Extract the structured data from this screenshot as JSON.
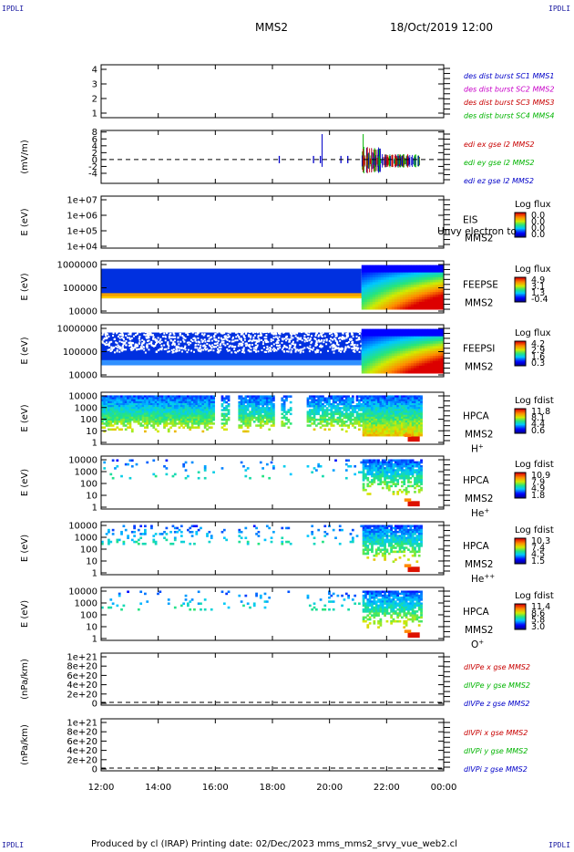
{
  "header": {
    "spacecraft": "MMS2",
    "date_time": "18/Oct/2019 12:00"
  },
  "corner_label": "IPDLI",
  "footer": "Produced by cl (IRAP)   Printing date: 02/Dec/2023   mms_mms2_srvy_vue_web2.cl",
  "x_axis": {
    "range": [
      "12:00",
      "00:00"
    ],
    "ticks": [
      "12:00",
      "14:00",
      "16:00",
      "18:00",
      "20:00",
      "22:00",
      "00:00"
    ]
  },
  "chart_data": [
    {
      "type": "line",
      "title": "",
      "ylabel": "",
      "yticks": [
        "1",
        "2",
        "3",
        "4"
      ],
      "legend": [
        {
          "text": "des dist burst SC1 MMS1",
          "color": "#0000c8"
        },
        {
          "text": "des dist burst SC2 MMS2",
          "color": "#c800c8"
        },
        {
          "text": "des dist burst SC3 MMS3",
          "color": "#c80000"
        },
        {
          "text": "des dist burst SC4 MMS4",
          "color": "#00b400"
        }
      ],
      "series": []
    },
    {
      "type": "line",
      "ylabel": "(mV/m)",
      "yticks": [
        "-4",
        "-2",
        "0",
        "2",
        "4",
        "6",
        "8"
      ],
      "ylim": [
        -5,
        9
      ],
      "zero_line": true,
      "legend": [
        {
          "text": "edi ex gse l2 MMS2",
          "color": "#c80000"
        },
        {
          "text": "edi ey gse l2 MMS2",
          "color": "#00b400"
        },
        {
          "text": "edi ez gse l2 MMS2",
          "color": "#0000c8"
        }
      ]
    },
    {
      "type": "heatmap",
      "ylabel": "E (eV)",
      "yticks": [
        "1e+04",
        "1e+05",
        "1e+06",
        "1e+07"
      ],
      "side_labels": [
        "EIS",
        "MMS2"
      ],
      "overlay_text": "Unvy electron to",
      "colorbar": {
        "title": "Log flux",
        "ticks": [
          "0.0",
          "0.0",
          "0.0",
          "0.0"
        ]
      }
    },
    {
      "type": "heatmap",
      "ylabel": "E (eV)",
      "yticks": [
        "10000",
        "100000",
        "1000000"
      ],
      "side_labels": [
        "FEEPSE",
        "MMS2"
      ],
      "colorbar": {
        "title": "Log flux",
        "ticks": [
          "4.9",
          "3.1",
          "1.3",
          "-0.4"
        ]
      }
    },
    {
      "type": "heatmap",
      "ylabel": "E (eV)",
      "yticks": [
        "10000",
        "100000",
        "1000000"
      ],
      "side_labels": [
        "FEEPSI",
        "MMS2"
      ],
      "colorbar": {
        "title": "Log flux",
        "ticks": [
          "4.2",
          "2.9",
          "1.6",
          "0.3"
        ]
      }
    },
    {
      "type": "heatmap",
      "ylabel": "E (eV)",
      "yticks": [
        "1",
        "10",
        "100",
        "1000",
        "10000"
      ],
      "side_labels": [
        "HPCA",
        "MMS2"
      ],
      "species": "H",
      "charge": "+",
      "colorbar": {
        "title": "Log fdist",
        "ticks": [
          "11.8",
          "8.1",
          "4.4",
          "0.6"
        ]
      }
    },
    {
      "type": "heatmap",
      "ylabel": "E (eV)",
      "yticks": [
        "1",
        "10",
        "100",
        "1000",
        "10000"
      ],
      "side_labels": [
        "HPCA",
        "MMS2"
      ],
      "species": "He",
      "charge": "+",
      "colorbar": {
        "title": "Log fdist",
        "ticks": [
          "10.9",
          "7.9",
          "4.9",
          "1.8"
        ]
      }
    },
    {
      "type": "heatmap",
      "ylabel": "E (eV)",
      "yticks": [
        "1",
        "10",
        "100",
        "1000",
        "10000"
      ],
      "side_labels": [
        "HPCA",
        "MMS2"
      ],
      "species": "He",
      "charge": "++",
      "colorbar": {
        "title": "Log fdist",
        "ticks": [
          "10.3",
          "7.4",
          "4.5",
          "1.5"
        ]
      }
    },
    {
      "type": "heatmap",
      "ylabel": "E (eV)",
      "yticks": [
        "1",
        "10",
        "100",
        "1000",
        "10000"
      ],
      "side_labels": [
        "HPCA",
        "MMS2"
      ],
      "species": "O",
      "charge": "+",
      "colorbar": {
        "title": "Log fdist",
        "ticks": [
          "11.4",
          "8.6",
          "5.8",
          "3.0"
        ]
      }
    },
    {
      "type": "line",
      "ylabel": "(nPa/km)",
      "yticks": [
        "0",
        "2e+20",
        "4e+20",
        "6e+20",
        "8e+20",
        "1e+21"
      ],
      "zero_line": true,
      "legend": [
        {
          "text": "dlVPe x gse MMS2",
          "color": "#c80000"
        },
        {
          "text": "dlVPe y gse MMS2",
          "color": "#00b400"
        },
        {
          "text": "dlVPe z gse MMS2",
          "color": "#0000c8"
        }
      ],
      "series": []
    },
    {
      "type": "line",
      "ylabel": "(nPa/km)",
      "yticks": [
        "0",
        "2e+20",
        "4e+20",
        "6e+20",
        "8e+20",
        "1e+21"
      ],
      "zero_line": true,
      "legend": [
        {
          "text": "dlVPi x gse MMS2",
          "color": "#c80000"
        },
        {
          "text": "dlVPi y gse MMS2",
          "color": "#00b400"
        },
        {
          "text": "dlVPi z gse MMS2",
          "color": "#0000c8"
        }
      ],
      "series": []
    }
  ]
}
